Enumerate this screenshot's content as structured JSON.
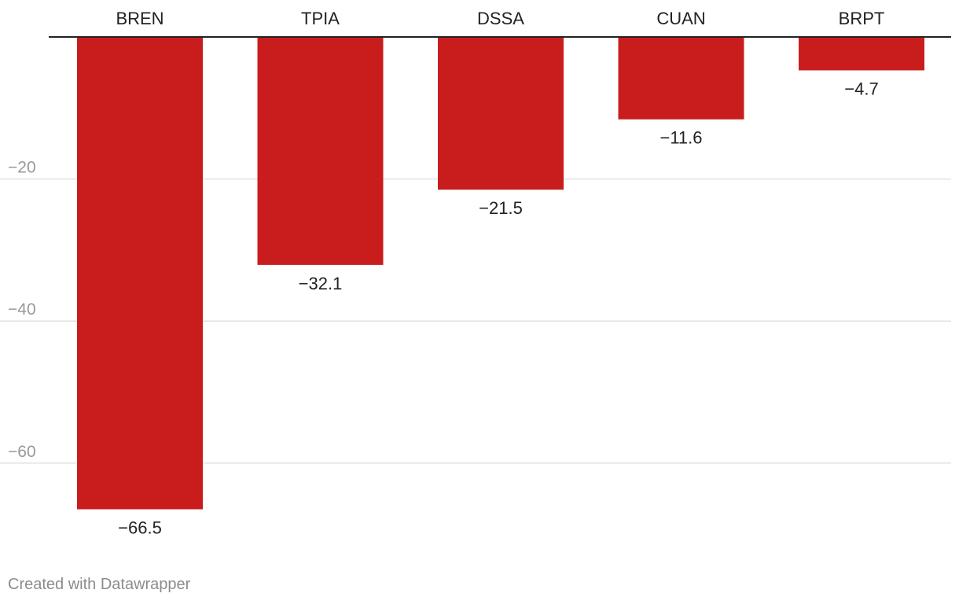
{
  "chart_data": {
    "type": "bar",
    "orientation": "vertical",
    "categories": [
      "BREN",
      "TPIA",
      "DSSA",
      "CUAN",
      "BRPT"
    ],
    "values": [
      -66.5,
      -32.1,
      -21.5,
      -11.6,
      -4.7
    ],
    "value_labels": [
      "−66.5",
      "−32.1",
      "−21.5",
      "−11.6",
      "−4.7"
    ],
    "title": "",
    "xlabel": "",
    "ylabel": "",
    "ylim": [
      -72,
      0
    ],
    "yticks": [
      -20,
      -40,
      -60
    ],
    "ytick_labels": [
      "−20",
      "−40",
      "−60"
    ],
    "grid": true,
    "category_axis_position": "top"
  },
  "colors": {
    "bar": "#c91d1d",
    "grid": "#e2e2e2",
    "axis": "#222222",
    "tick_label": "#999999",
    "category_label": "#222222",
    "value_label": "#222222"
  },
  "footer": {
    "credit": "Created with Datawrapper"
  }
}
